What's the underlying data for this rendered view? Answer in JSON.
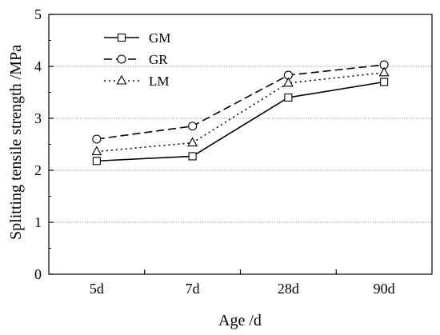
{
  "chart_data": {
    "type": "line",
    "categories": [
      "5d",
      "7d",
      "28d",
      "90d"
    ],
    "series": [
      {
        "name": "GM",
        "values": [
          2.18,
          2.27,
          3.4,
          3.7
        ],
        "marker": "square",
        "dash": "solid"
      },
      {
        "name": "GR",
        "values": [
          2.6,
          2.85,
          3.83,
          4.03
        ],
        "marker": "circle",
        "dash": "dashed"
      },
      {
        "name": "LM",
        "values": [
          2.36,
          2.53,
          3.68,
          3.88
        ],
        "marker": "triangle",
        "dash": "dotted"
      }
    ],
    "xlabel": "Age /d",
    "ylabel": "Splitting tensile strength /MPa",
    "ylim": [
      0,
      5
    ],
    "yticks": [
      0,
      1,
      2,
      3,
      4,
      5
    ],
    "grid": true,
    "legend_position": "top-left",
    "colors": {
      "line": "#000000",
      "grid": "#999999",
      "marker_fill": "#ffffff"
    }
  }
}
